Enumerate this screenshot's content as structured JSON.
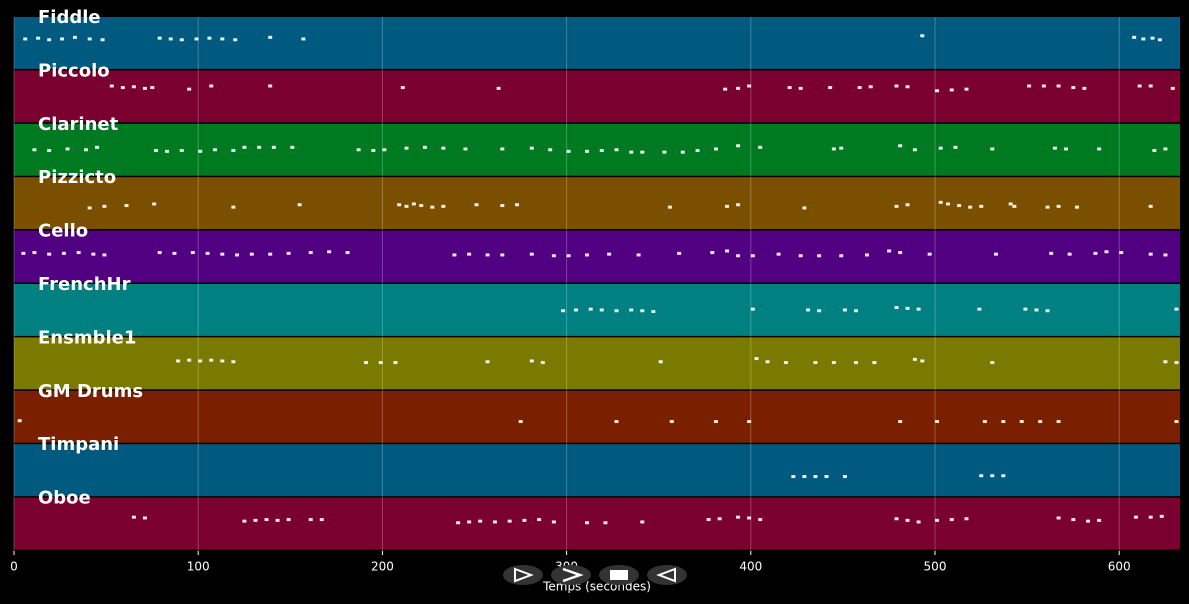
{
  "chart_data": {
    "type": "pianoroll",
    "xlabel": "Temps (secondes)",
    "xlim": [
      0,
      633
    ],
    "xticks": [
      0,
      100,
      200,
      300,
      400,
      500,
      600
    ],
    "ylim": [
      40,
      90
    ],
    "grid": true,
    "series": [
      {
        "name": "Fiddle",
        "color": "#005a80",
        "x": [
          5,
          12,
          18,
          25,
          32,
          40,
          47,
          78,
          84,
          90,
          98,
          105,
          112,
          119,
          138,
          156,
          492,
          607,
          612,
          617,
          621
        ],
        "values": [
          70,
          71,
          69,
          70,
          72,
          70,
          69,
          71,
          70,
          69,
          70,
          71,
          70,
          69,
          72,
          70,
          74,
          72,
          70,
          71,
          69
        ]
      },
      {
        "name": "Piccolo",
        "color": "#7a0030",
        "x": [
          52,
          58,
          64,
          70,
          74,
          94,
          106,
          138,
          210,
          262,
          385,
          392,
          398,
          420,
          426,
          442,
          458,
          464,
          478,
          484,
          500,
          508,
          516,
          550,
          558,
          566,
          574,
          580,
          610,
          616,
          628
        ],
        "values": [
          78,
          76,
          77,
          75,
          76,
          74,
          78,
          78,
          76,
          75,
          74,
          75,
          78,
          76,
          75,
          76,
          76,
          77,
          78,
          77,
          72,
          73,
          74,
          78,
          78,
          78,
          76,
          75,
          78,
          78,
          75
        ]
      },
      {
        "name": "Clarinet",
        "color": "#007a20",
        "x": [
          10,
          18,
          28,
          38,
          44,
          76,
          82,
          90,
          100,
          108,
          118,
          124,
          132,
          140,
          150,
          186,
          194,
          200,
          212,
          222,
          232,
          244,
          264,
          280,
          290,
          300,
          310,
          318,
          326,
          334,
          340,
          352,
          362,
          370,
          380,
          392,
          404,
          444,
          448,
          480,
          488,
          502,
          510,
          530,
          564,
          570,
          588,
          618,
          624
        ],
        "values": [
          65,
          64,
          66,
          65,
          68,
          64,
          63,
          64,
          63,
          65,
          64,
          68,
          68,
          68,
          68,
          65,
          64,
          65,
          67,
          68,
          67,
          66,
          66,
          67,
          65,
          63,
          63,
          64,
          65,
          62,
          62,
          62,
          62,
          64,
          66,
          70,
          68,
          66,
          67,
          70,
          65,
          67,
          68,
          66,
          67,
          66,
          66,
          64,
          66
        ]
      },
      {
        "name": "Pizzicto",
        "color": "#7a5000",
        "x": [
          40,
          48,
          60,
          75,
          118,
          154,
          208,
          212,
          216,
          220,
          226,
          232,
          250,
          264,
          272,
          355,
          386,
          392,
          428,
          478,
          484,
          502,
          506,
          512,
          518,
          524,
          540,
          542,
          560,
          566,
          576,
          616
        ],
        "values": [
          59,
          61,
          62,
          64,
          60,
          63,
          63,
          61,
          64,
          62,
          60,
          61,
          63,
          62,
          63,
          60,
          61,
          63,
          59,
          61,
          63,
          66,
          64,
          62,
          60,
          61,
          64,
          61,
          60,
          61,
          60,
          61
        ]
      },
      {
        "name": "Cello",
        "color": "#500080",
        "x": [
          4,
          10,
          18,
          26,
          34,
          42,
          48,
          78,
          86,
          96,
          104,
          112,
          120,
          128,
          138,
          148,
          160,
          170,
          180,
          238,
          246,
          256,
          264,
          280,
          292,
          300,
          310,
          322,
          338,
          360,
          378,
          386,
          392,
          400,
          414,
          426,
          436,
          448,
          462,
          474,
          480,
          496,
          532,
          562,
          572,
          586,
          592,
          600,
          616,
          624
        ],
        "values": [
          69,
          70,
          68,
          69,
          70,
          68,
          67,
          70,
          69,
          70,
          69,
          68,
          67,
          68,
          68,
          69,
          70,
          71,
          70,
          67,
          68,
          67,
          67,
          68,
          66,
          66,
          67,
          68,
          67,
          69,
          70,
          72,
          66,
          66,
          68,
          66,
          66,
          66,
          67,
          72,
          70,
          68,
          68,
          69,
          68,
          69,
          71,
          70,
          68,
          67
        ]
      },
      {
        "name": "FrenchHr",
        "color": "#008080",
        "x": [
          297,
          304,
          312,
          318,
          326,
          334,
          340,
          346,
          400,
          430,
          436,
          450,
          456,
          478,
          484,
          490,
          523,
          548,
          554,
          560,
          630
        ],
        "values": [
          64,
          65,
          66,
          65,
          64,
          65,
          64,
          63,
          66,
          65,
          64,
          65,
          64,
          68,
          67,
          66,
          66,
          66,
          65,
          64,
          66
        ]
      },
      {
        "name": "Ensmble1",
        "color": "#7a7a00",
        "x": [
          88,
          94,
          100,
          106,
          112,
          118,
          190,
          198,
          206,
          256,
          280,
          286,
          350,
          402,
          408,
          418,
          434,
          444,
          456,
          466,
          488,
          492,
          530,
          624,
          630
        ],
        "values": [
          68,
          69,
          68,
          69,
          68,
          67,
          66,
          66,
          66,
          67,
          68,
          66,
          67,
          71,
          67,
          66,
          66,
          66,
          66,
          66,
          70,
          68,
          66,
          67,
          66
        ]
      },
      {
        "name": "GM Drums",
        "color": "#7a2000",
        "x": [
          2,
          274,
          326,
          356,
          380,
          398,
          480,
          500,
          526,
          536,
          546,
          556,
          566,
          630
        ],
        "values": [
          60,
          59,
          59,
          59,
          59,
          59,
          59,
          59,
          59,
          59,
          59,
          59,
          59,
          59
        ]
      },
      {
        "name": "Timpani",
        "color": "#005a80",
        "x": [
          422,
          428,
          434,
          440,
          450,
          524,
          530,
          536
        ],
        "values": [
          57,
          57,
          57,
          57,
          57,
          58,
          58,
          58
        ]
      },
      {
        "name": "Oboe",
        "color": "#7a0030",
        "x": [
          64,
          70,
          124,
          130,
          136,
          142,
          148,
          160,
          166,
          240,
          246,
          252,
          260,
          268,
          276,
          284,
          292,
          310,
          320,
          340,
          376,
          382,
          392,
          398,
          404,
          478,
          484,
          490,
          500,
          508,
          516,
          566,
          574,
          582,
          588,
          608,
          616,
          622
        ],
        "values": [
          73,
          72,
          68,
          69,
          70,
          69,
          70,
          70,
          70,
          66,
          67,
          68,
          67,
          68,
          69,
          70,
          67,
          66,
          66,
          67,
          70,
          71,
          73,
          72,
          70,
          71,
          69,
          67,
          69,
          70,
          71,
          72,
          70,
          68,
          69,
          73,
          73,
          74
        ]
      }
    ]
  }
}
